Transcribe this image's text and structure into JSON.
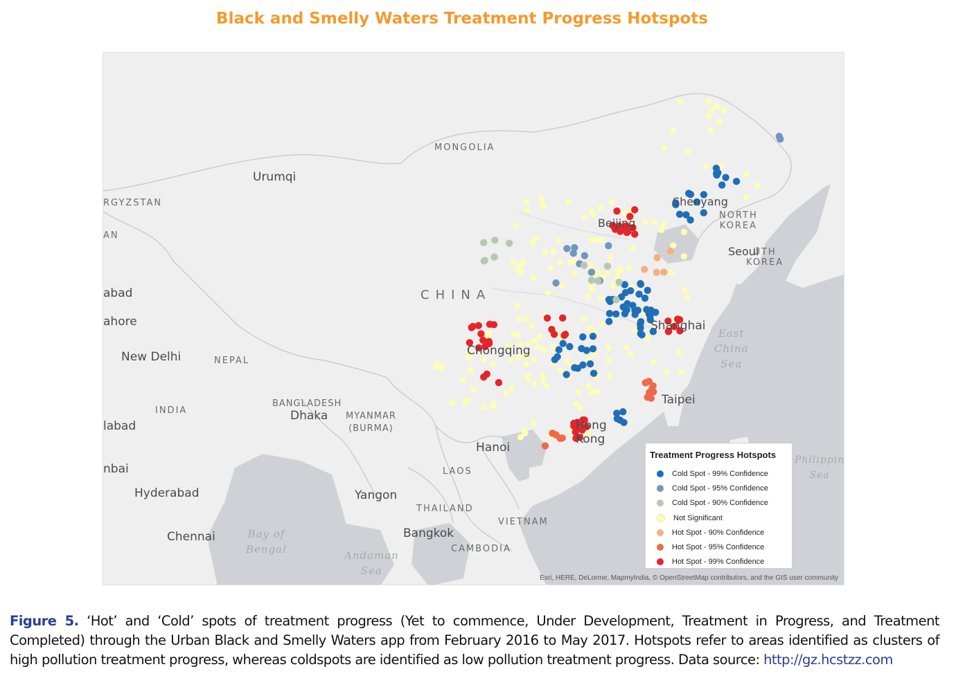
{
  "title": "Black and Smelly Waters Treatment Progress Hotspots",
  "map": {
    "labels": {
      "mongolia": "MONGOLIA",
      "urumqi": "Urumqi",
      "kyrgyzstan": "RGYZSTAN",
      "an": "AN",
      "china": "CHINA",
      "abad": "abad",
      "lahore": "ahore",
      "new_delhi": "New Delhi",
      "nepal": "NEPAL",
      "india": "INDIA",
      "bangladesh": "BANGLADESH",
      "dhaka": "Dhaka",
      "myanmar": "MYANMAR\n(BURMA)",
      "labad": "labad",
      "mbai": "nbai",
      "hyderabad": "Hyderabad",
      "chennai": "Chennai",
      "bay_of_bengal": "Bay of\nBengal",
      "yangon": "Yangon",
      "andaman_sea": "Andaman\nSea",
      "thailand": "THAILAND",
      "laos": "LAOS",
      "vietnam": "VIETNAM",
      "hanoi": "Hanoi",
      "bangkok": "Bangkok",
      "cambodia": "CAMBODIA",
      "chongqing": "Chongqing",
      "beijing": "Beijing",
      "shenyang": "Shenyang",
      "north_korea": "NORTH\nKOREA",
      "seoul": "Seoul",
      "south_korea": "UTH\nKOREA",
      "shanghai": "Shanghai",
      "east_china_sea": "East\nChina\nSea",
      "taipei": "Taipei",
      "hong_kong": "Hong\nKong",
      "philippine_sea": "Philippin\nSea"
    },
    "attribution": "Esri, HERE, DeLorme, MapmyIndia, © OpenStreetMap contributors, and the GIS user community"
  },
  "legend": {
    "title": "Treatment Progress Hotspots",
    "items": [
      {
        "label": "Cold Spot - 99% Confidence",
        "color": "#1f6fb8"
      },
      {
        "label": "Cold Spot - 95% Confidence",
        "color": "#6f97c1"
      },
      {
        "label": "Cold Spot - 90% Confidence",
        "color": "#b7c8b0"
      },
      {
        "label": "Not Significant",
        "color": "#fdfcb9"
      },
      {
        "label": "Hot Spot - 90% Confidence",
        "color": "#f6b07f"
      },
      {
        "label": "Hot Spot - 95% Confidence",
        "color": "#ef6a48"
      },
      {
        "label": "Hot Spot - 99% Confidence",
        "color": "#e3262b"
      }
    ]
  },
  "caption": {
    "label": "Figure 5.",
    "text": " ‘Hot’ and ‘Cold’ spots of treatment progress (Yet to commence, Under Development, Treatment in Progress, and Treatment Completed) through the Urban Black and Smelly Waters app from February 2016 to May 2017. Hotspots refer to areas identified as clusters of high pollution treatment progress, whereas coldspots are identified as low pollution treatment progress. Data source: ",
    "link": "http://gz.hcstzz.com"
  }
}
